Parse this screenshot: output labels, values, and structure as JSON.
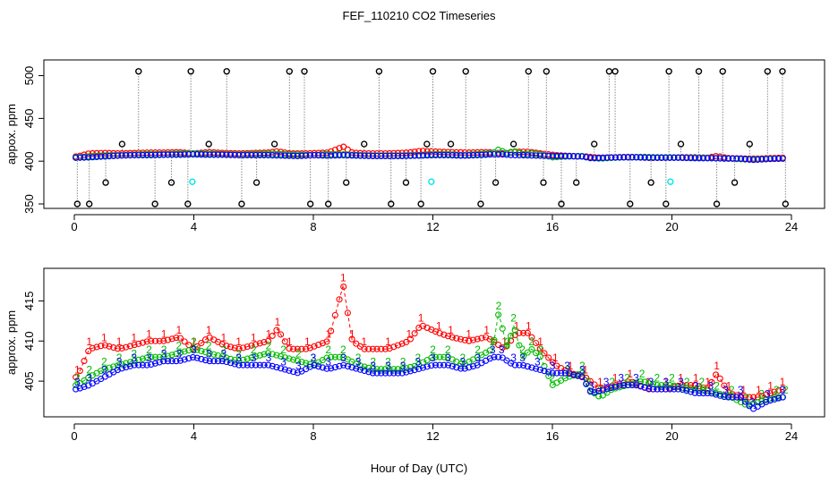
{
  "title": "FEF_110210  CO2 Timeseries",
  "xlabel": "Hour of Day (UTC)",
  "chart_data": [
    {
      "type": "scatter",
      "panel": "top",
      "ylabel": "appox. ppm",
      "xlim": [
        0,
        24
      ],
      "ylim": [
        350,
        510
      ],
      "xticks": [
        0,
        4,
        8,
        12,
        16,
        20,
        24
      ],
      "yticks": [
        350,
        400,
        450,
        500
      ],
      "series_colors": {
        "spikes": "#000000",
        "line1": "#ff0000",
        "line2": "#00bb00",
        "line3": "#0000ff",
        "cal": "#00e5ee"
      },
      "spike_series": {
        "x": [
          0.1,
          0.5,
          1.05,
          1.6,
          2.15,
          2.7,
          3.25,
          3.8,
          3.9,
          4.5,
          5.1,
          5.6,
          6.1,
          6.7,
          7.2,
          7.7,
          7.9,
          8.5,
          9.1,
          9.7,
          10.2,
          10.6,
          11.1,
          11.6,
          11.8,
          12.0,
          12.6,
          13.1,
          13.6,
          14.1,
          14.7,
          15.2,
          15.7,
          15.8,
          16.3,
          16.8,
          17.4,
          17.9,
          18.1,
          18.6,
          19.3,
          19.8,
          19.9,
          20.3,
          20.9,
          21.5,
          21.7,
          22.1,
          22.6,
          23.2,
          23.7,
          23.8
        ],
        "y": [
          350,
          350,
          375,
          420,
          505,
          350,
          375,
          350,
          505,
          420,
          505,
          350,
          375,
          420,
          505,
          505,
          350,
          350,
          375,
          420,
          505,
          350,
          375,
          350,
          420,
          505,
          420,
          505,
          350,
          375,
          420,
          505,
          375,
          505,
          350,
          375,
          420,
          505,
          505,
          350,
          375,
          350,
          505,
          420,
          505,
          350,
          505,
          375,
          420,
          505,
          505,
          350
        ]
      },
      "cal_series": {
        "x": [
          3.95,
          11.95,
          19.95
        ],
        "y": [
          376,
          376,
          376
        ]
      }
    },
    {
      "type": "line",
      "panel": "bottom",
      "ylabel": "approx. ppm",
      "xlim": [
        0,
        24
      ],
      "ylim": [
        401,
        418.5
      ],
      "xticks": [
        0,
        4,
        8,
        12,
        16,
        20,
        24
      ],
      "yticks": [
        405,
        410,
        415
      ],
      "series": [
        {
          "name": "1",
          "color": "#ff0000",
          "points": [
            [
              0.1,
              405.5
            ],
            [
              0.5,
              409
            ],
            [
              1,
              409.5
            ],
            [
              1.5,
              409
            ],
            [
              2,
              409.5
            ],
            [
              2.5,
              410
            ],
            [
              3,
              410
            ],
            [
              3.5,
              410.5
            ],
            [
              4,
              409
            ],
            [
              4.5,
              410.5
            ],
            [
              5,
              409.5
            ],
            [
              5.5,
              409
            ],
            [
              6,
              409.5
            ],
            [
              6.5,
              410
            ],
            [
              6.8,
              411.5
            ],
            [
              7.2,
              409
            ],
            [
              7.8,
              409
            ],
            [
              8.5,
              410
            ],
            [
              9.0,
              417
            ],
            [
              9.3,
              410
            ],
            [
              9.7,
              409
            ],
            [
              10.5,
              409
            ],
            [
              11.2,
              410
            ],
            [
              11.6,
              412
            ],
            [
              12.2,
              411
            ],
            [
              12.6,
              410.5
            ],
            [
              13.2,
              410
            ],
            [
              13.8,
              410.5
            ],
            [
              14.4,
              409
            ],
            [
              14.8,
              411
            ],
            [
              15.2,
              411
            ],
            [
              15.6,
              409
            ],
            [
              16.1,
              407
            ],
            [
              16.6,
              406
            ],
            [
              17.1,
              405.5
            ],
            [
              17.6,
              404
            ],
            [
              18.1,
              404.5
            ],
            [
              18.6,
              405
            ],
            [
              19.2,
              404
            ],
            [
              19.8,
              404
            ],
            [
              20.3,
              404.5
            ],
            [
              20.8,
              404.5
            ],
            [
              21.2,
              404
            ],
            [
              21.5,
              406
            ],
            [
              21.9,
              403.5
            ],
            [
              22.4,
              403
            ],
            [
              22.9,
              403
            ],
            [
              23.3,
              403.5
            ],
            [
              23.7,
              404
            ]
          ]
        },
        {
          "name": "2",
          "color": "#00bb00",
          "points": [
            [
              0.1,
              404.5
            ],
            [
              0.5,
              405.5
            ],
            [
              1,
              406.5
            ],
            [
              1.5,
              407
            ],
            [
              2,
              407.5
            ],
            [
              2.5,
              408
            ],
            [
              3,
              408
            ],
            [
              3.5,
              408.5
            ],
            [
              4,
              409
            ],
            [
              4.5,
              408.5
            ],
            [
              5,
              408
            ],
            [
              5.5,
              407.5
            ],
            [
              6,
              408
            ],
            [
              6.5,
              408.5
            ],
            [
              7,
              408
            ],
            [
              7.5,
              407.5
            ],
            [
              8,
              407
            ],
            [
              8.5,
              408
            ],
            [
              9,
              408
            ],
            [
              9.5,
              407
            ],
            [
              10,
              406.5
            ],
            [
              10.5,
              406.5
            ],
            [
              11,
              406.5
            ],
            [
              11.5,
              407
            ],
            [
              12,
              408
            ],
            [
              12.5,
              408
            ],
            [
              13,
              407
            ],
            [
              13.5,
              408
            ],
            [
              14,
              409
            ],
            [
              14.2,
              413.5
            ],
            [
              14.5,
              409
            ],
            [
              14.7,
              412
            ],
            [
              15,
              408
            ],
            [
              15.3,
              409
            ],
            [
              15.6,
              408
            ],
            [
              16,
              404.5
            ],
            [
              16.5,
              405.5
            ],
            [
              17,
              406
            ],
            [
              17.2,
              404
            ],
            [
              17.6,
              403
            ],
            [
              18,
              404
            ],
            [
              18.5,
              404.5
            ],
            [
              19,
              405
            ],
            [
              19.5,
              404.5
            ],
            [
              20,
              404.5
            ],
            [
              20.5,
              404
            ],
            [
              21,
              404
            ],
            [
              21.5,
              403.5
            ],
            [
              22,
              403
            ],
            [
              22.5,
              402
            ],
            [
              23,
              402.5
            ],
            [
              23.5,
              403
            ],
            [
              23.8,
              403
            ]
          ]
        },
        {
          "name": "3",
          "color": "#0000ff",
          "points": [
            [
              0.1,
              404
            ],
            [
              0.5,
              404.5
            ],
            [
              1,
              405.5
            ],
            [
              1.5,
              406.5
            ],
            [
              2,
              407
            ],
            [
              2.5,
              407
            ],
            [
              3,
              407.5
            ],
            [
              3.5,
              407.5
            ],
            [
              4,
              408
            ],
            [
              4.5,
              407.5
            ],
            [
              5,
              407.5
            ],
            [
              5.5,
              407
            ],
            [
              6,
              407
            ],
            [
              6.5,
              407
            ],
            [
              7,
              406.5
            ],
            [
              7.5,
              406
            ],
            [
              8,
              407
            ],
            [
              8.5,
              406.5
            ],
            [
              9,
              407
            ],
            [
              9.5,
              406.5
            ],
            [
              10,
              406
            ],
            [
              10.5,
              406
            ],
            [
              11,
              406
            ],
            [
              11.5,
              406.5
            ],
            [
              12,
              407
            ],
            [
              12.5,
              407
            ],
            [
              13,
              406.5
            ],
            [
              13.5,
              407
            ],
            [
              14,
              408
            ],
            [
              14.3,
              408
            ],
            [
              14.7,
              407
            ],
            [
              15,
              407
            ],
            [
              15.5,
              406.5
            ],
            [
              16,
              406
            ],
            [
              16.5,
              406
            ],
            [
              17,
              405.5
            ],
            [
              17.3,
              403.5
            ],
            [
              17.8,
              404
            ],
            [
              18.3,
              404.5
            ],
            [
              18.8,
              404.5
            ],
            [
              19.3,
              404
            ],
            [
              19.8,
              404
            ],
            [
              20.3,
              404
            ],
            [
              20.8,
              403.5
            ],
            [
              21.3,
              403.5
            ],
            [
              21.8,
              403
            ],
            [
              22.3,
              403
            ],
            [
              22.7,
              401.5
            ],
            [
              23.2,
              402.5
            ],
            [
              23.7,
              403
            ]
          ]
        }
      ]
    }
  ]
}
